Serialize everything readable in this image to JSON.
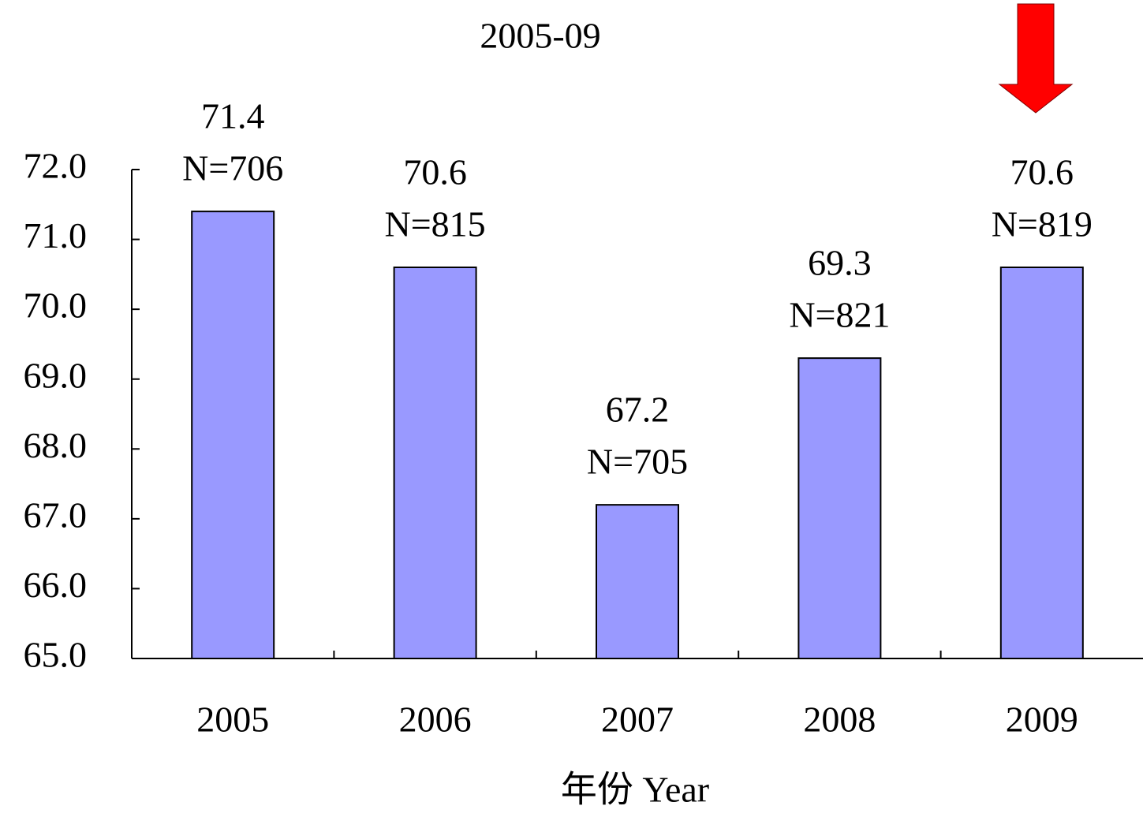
{
  "chart_data": {
    "type": "bar",
    "subtitle": "2005-09",
    "categories": [
      "2005",
      "2006",
      "2007",
      "2008",
      "2009"
    ],
    "values": [
      71.4,
      70.6,
      67.2,
      69.3,
      70.6
    ],
    "sample_sizes": [
      "N=706",
      "N=815",
      "N=705",
      "N=821",
      "N=819"
    ],
    "color": "#9999ff",
    "xlabel": "年份 Year",
    "ylim": [
      65,
      72
    ],
    "yticks": [
      {
        "value": 65,
        "label": "65.0"
      },
      {
        "value": 66,
        "label": "66.0"
      },
      {
        "value": 67,
        "label": "67.0"
      },
      {
        "value": 68,
        "label": "68.0"
      },
      {
        "value": 69,
        "label": "69.0"
      },
      {
        "value": 70,
        "label": "70.0"
      },
      {
        "value": 71,
        "label": "71.0"
      },
      {
        "value": 72,
        "label": "72.0"
      }
    ]
  }
}
